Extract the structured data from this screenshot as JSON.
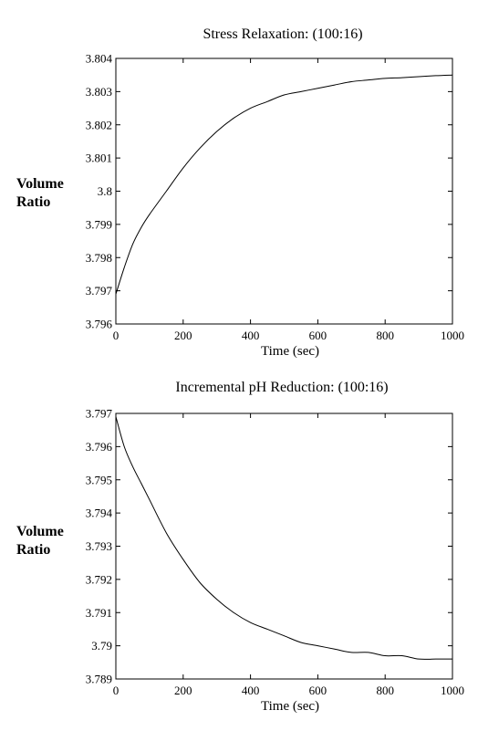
{
  "chart_data": [
    {
      "type": "line",
      "title": "Stress Relaxation:  (100:16)",
      "xlabel": "Time (sec)",
      "ylabel_lines": [
        "Volume",
        "Ratio"
      ],
      "xlim": [
        0,
        1000
      ],
      "ylim": [
        3.796,
        3.804
      ],
      "xticks": [
        0,
        200,
        400,
        600,
        800,
        1000
      ],
      "xtick_labels": [
        "0",
        "200",
        "400",
        "600",
        "800",
        "1000"
      ],
      "yticks": [
        3.796,
        3.797,
        3.798,
        3.799,
        3.8,
        3.801,
        3.802,
        3.803,
        3.804
      ],
      "ytick_labels": [
        "3.796",
        "3.797",
        "3.798",
        "3.799",
        "3.8",
        "3.801",
        "3.802",
        "3.803",
        "3.804"
      ],
      "grid": false,
      "series": [
        {
          "x": [
            0,
            25,
            50,
            75,
            100,
            150,
            200,
            250,
            300,
            350,
            400,
            450,
            500,
            550,
            600,
            650,
            700,
            750,
            800,
            850,
            900,
            950,
            1000
          ],
          "y": [
            3.7969,
            3.7977,
            3.7984,
            3.7989,
            3.7993,
            3.8,
            3.8007,
            3.8013,
            3.8018,
            3.8022,
            3.8025,
            3.8027,
            3.8029,
            3.803,
            3.8031,
            3.8032,
            3.8033,
            3.80335,
            3.8034,
            3.80342,
            3.80345,
            3.80348,
            3.8035
          ]
        }
      ]
    },
    {
      "type": "line",
      "title": "Incremental pH Reduction:  (100:16)",
      "xlabel": "Time (sec)",
      "ylabel_lines": [
        "Volume",
        "Ratio"
      ],
      "xlim": [
        0,
        1000
      ],
      "ylim": [
        3.789,
        3.797
      ],
      "xticks": [
        0,
        200,
        400,
        600,
        800,
        1000
      ],
      "xtick_labels": [
        "0",
        "200",
        "400",
        "600",
        "800",
        "1000"
      ],
      "yticks": [
        3.789,
        3.79,
        3.791,
        3.792,
        3.793,
        3.794,
        3.795,
        3.796,
        3.797
      ],
      "ytick_labels": [
        "3.789",
        "3.79",
        "3.791",
        "3.792",
        "3.793",
        "3.794",
        "3.795",
        "3.796",
        "3.797"
      ],
      "grid": false,
      "series": [
        {
          "x": [
            0,
            25,
            50,
            75,
            100,
            150,
            200,
            250,
            300,
            350,
            400,
            450,
            500,
            550,
            600,
            650,
            700,
            750,
            800,
            850,
            900,
            950,
            1000
          ],
          "y": [
            3.7969,
            3.796,
            3.7954,
            3.7949,
            3.7944,
            3.7934,
            3.7926,
            3.7919,
            3.7914,
            3.791,
            3.7907,
            3.7905,
            3.7903,
            3.7901,
            3.79,
            3.7899,
            3.7898,
            3.7898,
            3.7897,
            3.7897,
            3.7896,
            3.7896,
            3.7896
          ]
        }
      ]
    }
  ]
}
